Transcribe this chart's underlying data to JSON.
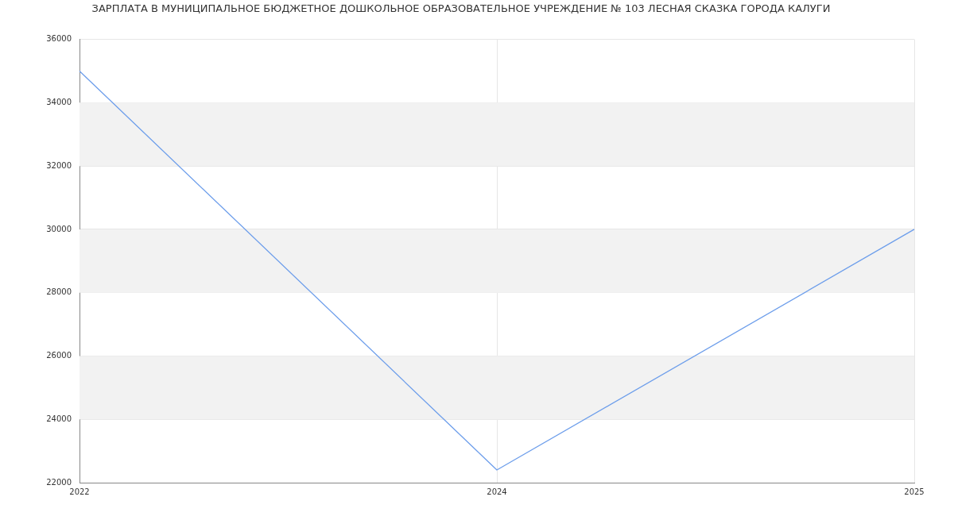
{
  "chart_data": {
    "type": "line",
    "title": "ЗАРПЛАТА В МУНИЦИПАЛЬНОЕ БЮДЖЕТНОЕ ДОШКОЛЬНОЕ ОБРАЗОВАТЕЛЬНОЕ УЧРЕЖДЕНИЕ № 103 ЛЕСНАЯ СКАЗКА ГОРОДА КАЛУГИ",
    "categories": [
      "2022",
      "2024",
      "2025"
    ],
    "series": [
      {
        "color": "#6d9eeb",
        "values": [
          35000,
          22400,
          30000
        ]
      }
    ],
    "ylim": [
      22000,
      36000
    ],
    "yticks": [
      22000,
      24000,
      26000,
      28000,
      30000,
      32000,
      34000,
      36000
    ],
    "bands": [
      {
        "axis": "y",
        "from": 24000,
        "to": 26000,
        "color": "#f2f2f2"
      },
      {
        "axis": "y",
        "from": 28000,
        "to": 30000,
        "color": "#f2f2f2"
      },
      {
        "axis": "y",
        "from": 32000,
        "to": 34000,
        "color": "#f2f2f2"
      }
    ],
    "grid": true,
    "legend": false,
    "marker": "none",
    "line_style": "solid"
  }
}
